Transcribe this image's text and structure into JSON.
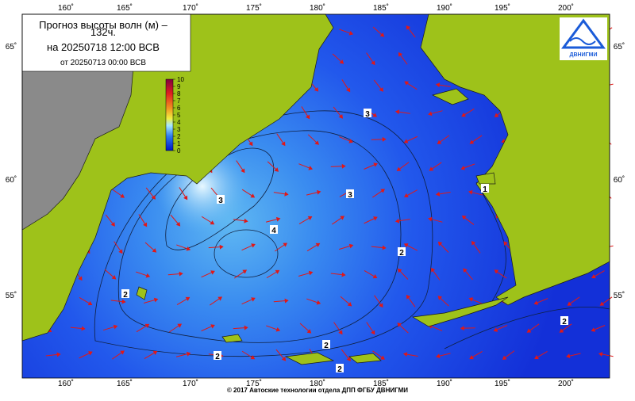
{
  "header": {
    "title_line1": "Прогноз высоты волн (м) –",
    "title_line2": "132ч.",
    "forecast_date": "на 20250718 12:00 ВСВ",
    "base_date": "от 20250713 00:00 ВСВ"
  },
  "logo": {
    "text": "ДВНИГМИ"
  },
  "colorbar": {
    "ticks": [
      10,
      9,
      8,
      7,
      6,
      5,
      4,
      3,
      2,
      1,
      0
    ]
  },
  "longitude_labels": [
    "160˚",
    "165˚",
    "170˚",
    "175˚",
    "180˚",
    "185˚",
    "190˚",
    "195˚",
    "200˚"
  ],
  "latitude_labels": [
    "65˚",
    "60˚",
    "55˚"
  ],
  "contour_labels": [
    "3",
    "3",
    "3",
    "4",
    "2",
    "2",
    "2",
    "2",
    "2",
    "1",
    "2"
  ],
  "footer": "© 2017 Автоские технологии отдела ДПП ФГБУ ДВНИГМИ"
}
